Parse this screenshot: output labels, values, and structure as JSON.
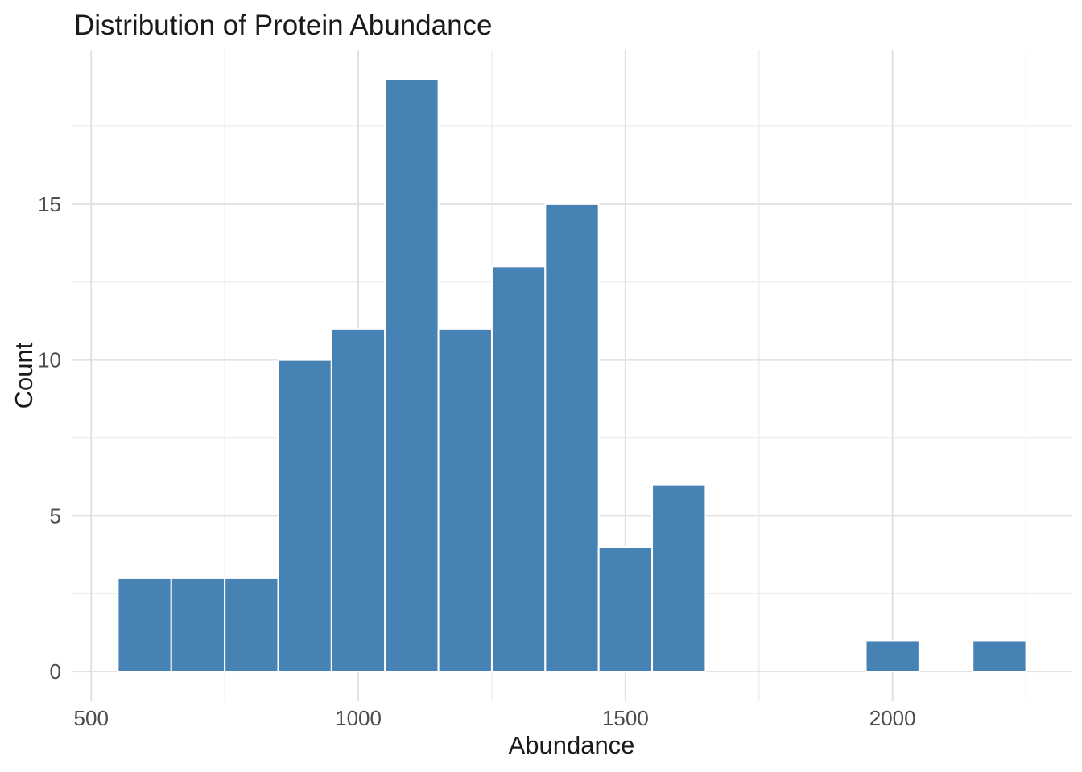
{
  "chart_data": {
    "type": "bar",
    "subtype": "histogram",
    "title": "Distribution of Protein Abundance",
    "xlabel": "Abundance",
    "ylabel": "Count",
    "legend": "none",
    "grid": true,
    "bin_width": 100,
    "bins": [
      {
        "center": 600,
        "count": 3
      },
      {
        "center": 700,
        "count": 3
      },
      {
        "center": 800,
        "count": 3
      },
      {
        "center": 900,
        "count": 10
      },
      {
        "center": 1000,
        "count": 11
      },
      {
        "center": 1100,
        "count": 19
      },
      {
        "center": 1200,
        "count": 11
      },
      {
        "center": 1300,
        "count": 13
      },
      {
        "center": 1400,
        "count": 15
      },
      {
        "center": 1500,
        "count": 4
      },
      {
        "center": 1600,
        "count": 6
      },
      {
        "center": 1700,
        "count": 0
      },
      {
        "center": 1800,
        "count": 0
      },
      {
        "center": 1900,
        "count": 0
      },
      {
        "center": 2000,
        "count": 1
      },
      {
        "center": 2100,
        "count": 0
      },
      {
        "center": 2200,
        "count": 1
      }
    ],
    "x_ticks": [
      500,
      1000,
      1500,
      2000
    ],
    "x_minor_ticks": [
      750,
      1250,
      1750,
      2250
    ],
    "y_ticks": [
      0,
      5,
      10,
      15
    ],
    "y_minor_ticks": [
      2.5,
      7.5,
      12.5,
      17.5
    ],
    "x_domain": [
      465,
      2335
    ],
    "y_domain": [
      -0.95,
      19.95
    ],
    "colors": {
      "bar_fill": "#4682B4",
      "bar_stroke": "#FFFFFF",
      "grid_major": "#E2E2E2",
      "grid_minor": "#EDEDED",
      "tick_label": "#4D4D4D",
      "axis_title": "#1A1A1A",
      "title": "#1A1A1A",
      "background": "#FFFFFF"
    }
  }
}
